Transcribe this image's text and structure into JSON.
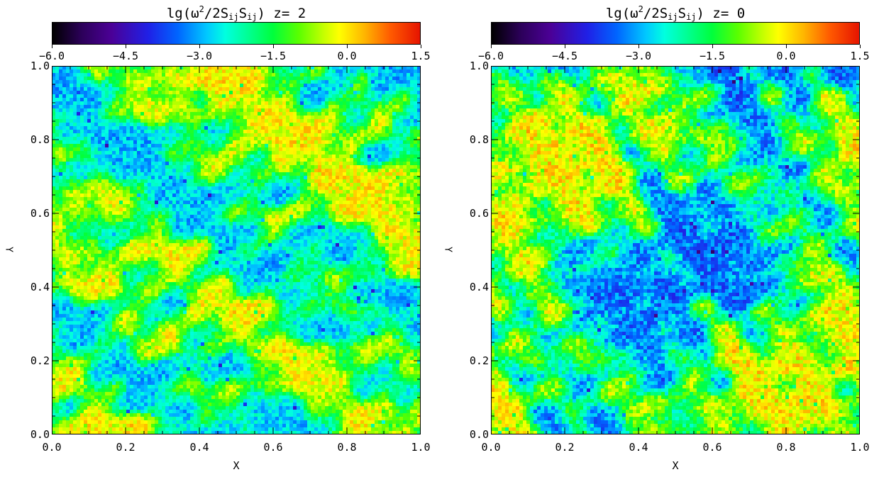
{
  "panels": [
    {
      "id": "left",
      "title": {
        "base": "lg(ω",
        "sup": "2",
        "mid": "/2S",
        "sub1": "ij",
        "s2": "S",
        "sub2": "ij",
        "tail": ")  z= 2"
      },
      "xlabel": "X",
      "ylabel": "Y",
      "seed": 7
    },
    {
      "id": "right",
      "title": {
        "base": "lg(ω",
        "sup": "2",
        "mid": "/2S",
        "sub1": "ij",
        "s2": "S",
        "sub2": "ij",
        "tail": ")  z= 0"
      },
      "xlabel": "X",
      "ylabel": "Y",
      "seed": 23
    }
  ],
  "colorbar": {
    "ticks": [
      "−6.0",
      "−4.5",
      "−3.0",
      "−1.5",
      "0.0",
      "1.5"
    ],
    "values": [
      -6.0,
      -4.5,
      -3.0,
      -1.5,
      0.0,
      1.5
    ],
    "range": [
      -6.0,
      1.5
    ],
    "colormap": "rainbow"
  },
  "chart_data": [
    {
      "type": "heatmap",
      "title": "lg(ω²/2SijSij)  z= 2",
      "xlabel": "X",
      "ylabel": "Y",
      "xlim": [
        0.0,
        1.0
      ],
      "ylim": [
        0.0,
        1.0
      ],
      "xticks": [
        "0.0",
        "0.2",
        "0.4",
        "0.6",
        "0.8",
        "1.0"
      ],
      "yticks": [
        "0.0",
        "0.2",
        "0.4",
        "0.6",
        "0.8",
        "1.0"
      ],
      "color_range": [
        -6.0,
        1.5
      ],
      "dominant_value_range": [
        -3.0,
        0.0
      ]
    },
    {
      "type": "heatmap",
      "title": "lg(ω²/2SijSij)  z= 0",
      "xlabel": "X",
      "ylabel": "Y",
      "xlim": [
        0.0,
        1.0
      ],
      "ylim": [
        0.0,
        1.0
      ],
      "xticks": [
        "0.0",
        "0.2",
        "0.4",
        "0.6",
        "0.8",
        "1.0"
      ],
      "yticks": [
        "0.0",
        "0.2",
        "0.4",
        "0.6",
        "0.8",
        "1.0"
      ],
      "color_range": [
        -6.0,
        1.5
      ],
      "dominant_value_range": [
        -3.5,
        0.0
      ]
    }
  ]
}
